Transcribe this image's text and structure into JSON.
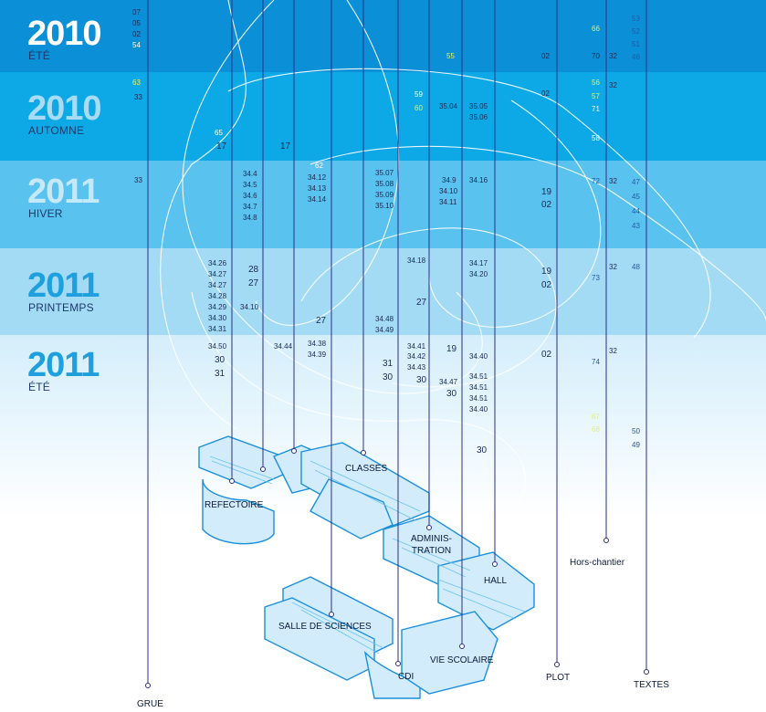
{
  "seasons": [
    {
      "year": "2010",
      "season": "ÉTÉ"
    },
    {
      "year": "2010",
      "season": "AUTOMNE"
    },
    {
      "year": "2011",
      "season": "HIVER"
    },
    {
      "year": "2011",
      "season": "PRINTEMPS"
    },
    {
      "year": "2011",
      "season": "ÉTÉ"
    }
  ],
  "locations": [
    {
      "label": "GRUE"
    },
    {
      "label": "REFECTOIRE"
    },
    {
      "label": "CLASSES"
    },
    {
      "label": "SALLE DE SCIENCES"
    },
    {
      "label": "CDI"
    },
    {
      "label": "ADMINIS-\nTRATION"
    },
    {
      "label": "VIE SCOLAIRE"
    },
    {
      "label": "HALL"
    },
    {
      "label": "PLOT"
    },
    {
      "label": "Hors-chantier"
    },
    {
      "label": "TEXTES"
    }
  ],
  "numbers": [
    {
      "t": "07"
    },
    {
      "t": "05"
    },
    {
      "t": "02"
    },
    {
      "t": "54"
    },
    {
      "t": "63"
    },
    {
      "t": "33"
    },
    {
      "t": "33"
    },
    {
      "t": "66"
    },
    {
      "t": "53"
    },
    {
      "t": "52"
    },
    {
      "t": "51"
    },
    {
      "t": "46"
    },
    {
      "t": "55"
    },
    {
      "t": "02"
    },
    {
      "t": "70"
    },
    {
      "t": "32"
    },
    {
      "t": "59"
    },
    {
      "t": "60"
    },
    {
      "t": "35.04"
    },
    {
      "t": "35.05"
    },
    {
      "t": "35.06"
    },
    {
      "t": "02"
    },
    {
      "t": "56"
    },
    {
      "t": "57"
    },
    {
      "t": "71"
    },
    {
      "t": "32"
    },
    {
      "t": "65"
    },
    {
      "t": "17"
    },
    {
      "t": "17"
    },
    {
      "t": "58"
    },
    {
      "t": "62"
    },
    {
      "t": "34.4"
    },
    {
      "t": "34.5"
    },
    {
      "t": "34.6"
    },
    {
      "t": "34.7"
    },
    {
      "t": "34.8"
    },
    {
      "t": "34.12"
    },
    {
      "t": "34.13"
    },
    {
      "t": "34.14"
    },
    {
      "t": "35.07"
    },
    {
      "t": "35.08"
    },
    {
      "t": "35.09"
    },
    {
      "t": "35.10"
    },
    {
      "t": "34.9"
    },
    {
      "t": "34.10"
    },
    {
      "t": "34.11"
    },
    {
      "t": "34.16"
    },
    {
      "t": "19"
    },
    {
      "t": "02"
    },
    {
      "t": "72"
    },
    {
      "t": "32"
    },
    {
      "t": "47"
    },
    {
      "t": "45"
    },
    {
      "t": "44"
    },
    {
      "t": "43"
    },
    {
      "t": "34.26"
    },
    {
      "t": "34.27"
    },
    {
      "t": "34.27"
    },
    {
      "t": "34.28"
    },
    {
      "t": "34.29"
    },
    {
      "t": "34.30"
    },
    {
      "t": "34.31"
    },
    {
      "t": "28"
    },
    {
      "t": "27"
    },
    {
      "t": "34.10"
    },
    {
      "t": "34.18"
    },
    {
      "t": "34.17"
    },
    {
      "t": "34.20"
    },
    {
      "t": "19"
    },
    {
      "t": "02"
    },
    {
      "t": "73"
    },
    {
      "t": "32"
    },
    {
      "t": "48"
    },
    {
      "t": "27"
    },
    {
      "t": "27"
    },
    {
      "t": "34.48"
    },
    {
      "t": "34.49"
    },
    {
      "t": "34.50"
    },
    {
      "t": "30"
    },
    {
      "t": "31"
    },
    {
      "t": "34.44"
    },
    {
      "t": "34.38"
    },
    {
      "t": "34.39"
    },
    {
      "t": "34.41"
    },
    {
      "t": "34.42"
    },
    {
      "t": "34.43"
    },
    {
      "t": "19"
    },
    {
      "t": "31"
    },
    {
      "t": "30"
    },
    {
      "t": "30"
    },
    {
      "t": "34.40"
    },
    {
      "t": "34.47"
    },
    {
      "t": "30"
    },
    {
      "t": "34.51"
    },
    {
      "t": "34.51"
    },
    {
      "t": "34.51"
    },
    {
      "t": "34.40"
    },
    {
      "t": "02"
    },
    {
      "t": "74"
    },
    {
      "t": "32"
    },
    {
      "t": "67"
    },
    {
      "t": "68"
    },
    {
      "t": "50"
    },
    {
      "t": "49"
    },
    {
      "t": "30"
    }
  ]
}
